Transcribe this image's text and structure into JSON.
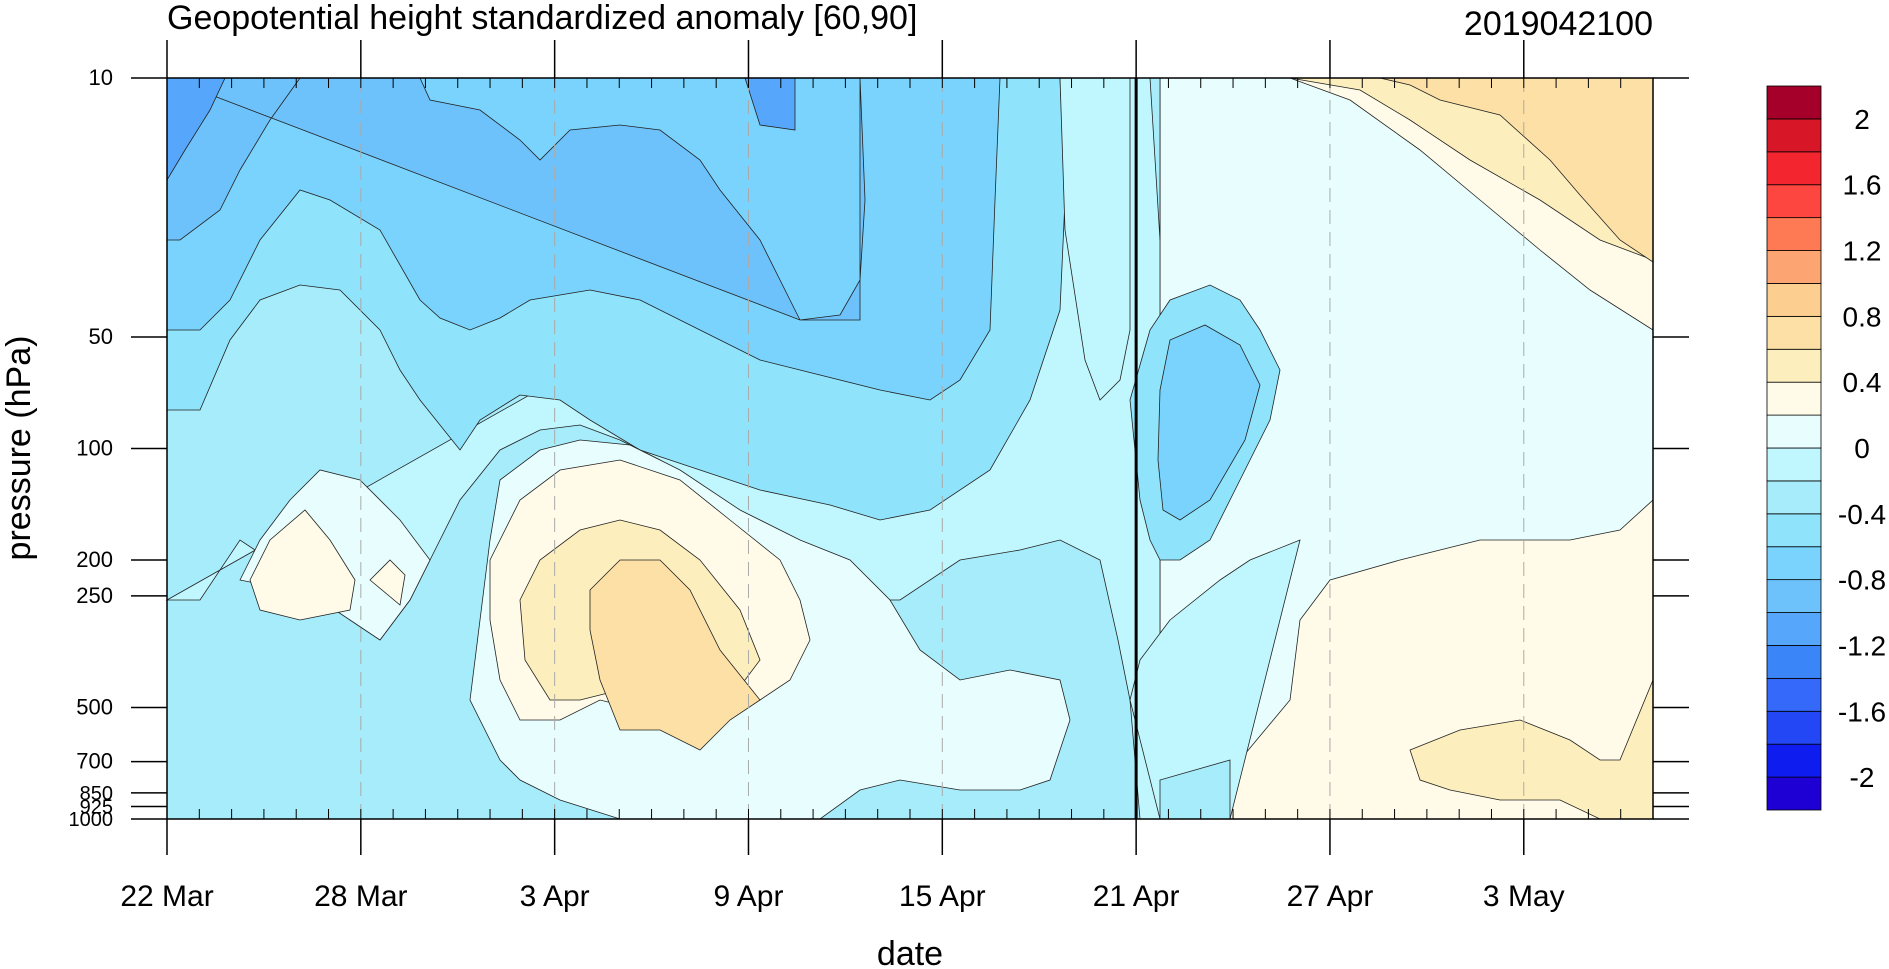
{
  "chart_data": {
    "type": "heatmap",
    "subtype": "filled-contour (time–pressure cross-section)",
    "title": "Geopotential height standardized anomaly [60,90]",
    "timestamp_label": "2019042100",
    "xlabel": "date",
    "ylabel": "pressure (hPa)",
    "x_range": [
      "2019-03-22",
      "2019-05-07"
    ],
    "x_ticks": [
      {
        "date": "2019-03-22",
        "label": "22 Mar"
      },
      {
        "date": "2019-03-28",
        "label": "28 Mar"
      },
      {
        "date": "2019-04-03",
        "label": "3 Apr"
      },
      {
        "date": "2019-04-09",
        "label": "9 Apr"
      },
      {
        "date": "2019-04-15",
        "label": "15 Apr"
      },
      {
        "date": "2019-04-21",
        "label": "21 Apr"
      },
      {
        "date": "2019-04-27",
        "label": "27 Apr"
      },
      {
        "date": "2019-05-03",
        "label": "3 May"
      }
    ],
    "y_scale": "log (reversed)",
    "y_range": [
      1000,
      10
    ],
    "y_ticks": [
      {
        "value": 10,
        "label": "10"
      },
      {
        "value": 50,
        "label": "50"
      },
      {
        "value": 100,
        "label": "100"
      },
      {
        "value": 200,
        "label": "200"
      },
      {
        "value": 250,
        "label": "250"
      },
      {
        "value": 500,
        "label": "500"
      },
      {
        "value": 700,
        "label": "700"
      },
      {
        "value": 850,
        "label": "850"
      },
      {
        "value": 925,
        "label": "925"
      },
      {
        "value": 1000,
        "label": "1000"
      }
    ],
    "reference_line_date": "2019-04-21",
    "colorbar": {
      "levels": [
        -2,
        -1.8,
        -1.6,
        -1.4,
        -1.2,
        -1,
        -0.8,
        -0.6,
        -0.4,
        -0.2,
        0,
        0.2,
        0.4,
        0.6,
        0.8,
        1,
        1.2,
        1.4,
        1.6,
        1.8,
        2
      ],
      "colors": [
        "#1f00d4",
        "#0e1cf0",
        "#2447f5",
        "#3569fa",
        "#3a86f8",
        "#56a7fb",
        "#6dc2fc",
        "#79d3fd",
        "#8fe3fb",
        "#a6ecfb",
        "#c0f6fd",
        "#e8fefe",
        "#fffbe8",
        "#fdefbd",
        "#fde0a6",
        "#fccf91",
        "#fca472",
        "#fd7a55",
        "#fd4640",
        "#f32630",
        "#d71628",
        "#a4002a"
      ],
      "labels": [
        "-2",
        "-1.6",
        "-1.2",
        "-0.8",
        "-0.4",
        "0",
        "0.4",
        "0.8",
        "1.2",
        "1.6",
        "2"
      ]
    },
    "regions": [
      {
        "level_min": -1.2,
        "level_max": -1.0,
        "desc": "top-left corner and 9 Apr near 10-15 hPa"
      },
      {
        "level_min": -1.0,
        "level_max": -0.8,
        "desc": "upper stratosphere 22 Mar–19 Apr"
      },
      {
        "level_min": 0.4,
        "level_max": 0.8,
        "desc": "3 May–7 May near 10-50 hPa; 5–9 Apr near 250-600 hPa"
      },
      {
        "level_min": -0.6,
        "level_max": -0.4,
        "desc": "21 Apr–24 Apr near 60-200 hPa"
      },
      {
        "level_min": 0,
        "level_max": 0.4,
        "desc": "lower troposphere 25 Apr–7 May"
      }
    ]
  }
}
